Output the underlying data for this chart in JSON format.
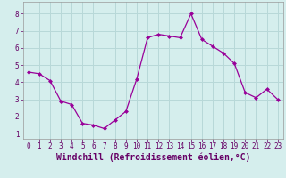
{
  "x": [
    0,
    1,
    2,
    3,
    4,
    5,
    6,
    7,
    8,
    9,
    10,
    11,
    12,
    13,
    14,
    15,
    16,
    17,
    18,
    19,
    20,
    21,
    22,
    23
  ],
  "y": [
    4.6,
    4.5,
    4.1,
    2.9,
    2.7,
    1.6,
    1.5,
    1.3,
    1.8,
    2.3,
    4.2,
    6.6,
    6.8,
    6.7,
    6.6,
    8.0,
    6.5,
    6.1,
    5.7,
    5.1,
    3.4,
    3.1,
    3.6,
    3.0
  ],
  "line_color": "#990099",
  "marker": "D",
  "marker_size": 2.0,
  "bg_color": "#d5eeed",
  "grid_color": "#b8d8d8",
  "xlabel": "Windchill (Refroidissement éolien,°C)",
  "xlabel_fontsize": 7.0,
  "xlim": [
    -0.5,
    23.5
  ],
  "ylim": [
    0.7,
    8.7
  ],
  "yticks": [
    1,
    2,
    3,
    4,
    5,
    6,
    7,
    8
  ],
  "xticks": [
    0,
    1,
    2,
    3,
    4,
    5,
    6,
    7,
    8,
    9,
    10,
    11,
    12,
    13,
    14,
    15,
    16,
    17,
    18,
    19,
    20,
    21,
    22,
    23
  ],
  "tick_fontsize": 5.5,
  "label_color": "#660066"
}
